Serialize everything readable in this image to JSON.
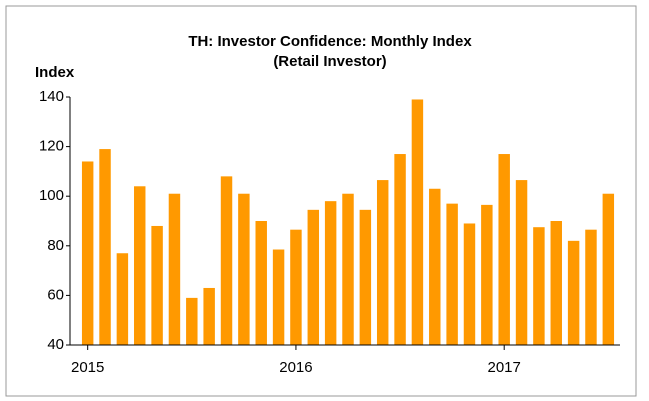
{
  "chart_data": {
    "type": "bar",
    "title": "TH: Investor Confidence: Monthly Index",
    "subtitle": "(Retail Investor)",
    "y_label": "Index",
    "categories": [
      "2015",
      null,
      null,
      null,
      null,
      null,
      null,
      null,
      null,
      null,
      null,
      null,
      "2016",
      null,
      null,
      null,
      null,
      null,
      null,
      null,
      null,
      null,
      null,
      null,
      "2017",
      null,
      null,
      null,
      null,
      null,
      null
    ],
    "values": [
      114,
      119,
      77,
      104,
      88,
      101,
      59,
      63,
      108,
      101,
      90,
      78.5,
      86.5,
      94.5,
      98,
      101,
      94.5,
      106.5,
      117,
      139,
      103,
      97,
      89,
      96.5,
      117,
      106.5,
      87.5,
      90,
      82,
      86.5,
      101
    ],
    "color": "#ff9900",
    "ylim": [
      40,
      140
    ],
    "yticks": [
      40,
      60,
      80,
      100,
      120,
      140
    ],
    "grid": false
  }
}
